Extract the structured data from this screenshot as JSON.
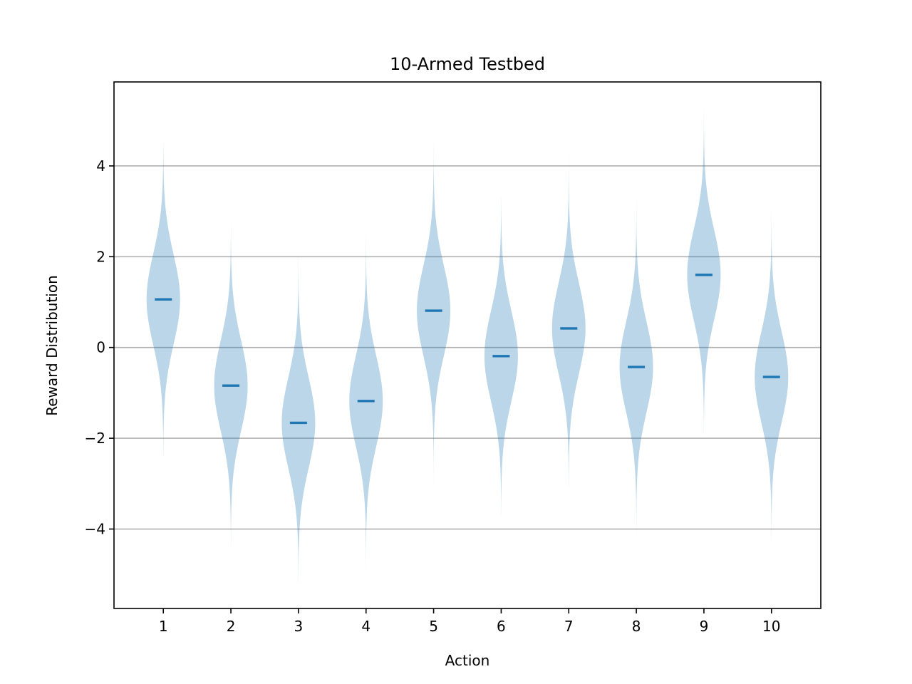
{
  "chart_data": {
    "type": "violin",
    "title": "10-Armed Testbed",
    "xlabel": "Action",
    "ylabel": "Reward Distribution",
    "categories": [
      "1",
      "2",
      "3",
      "4",
      "5",
      "6",
      "7",
      "8",
      "9",
      "10"
    ],
    "means": [
      1.06,
      -0.84,
      -1.66,
      -1.18,
      0.81,
      -0.19,
      0.42,
      -0.43,
      1.6,
      -0.65
    ],
    "ranges": [
      [
        -2.4,
        4.5
      ],
      [
        -4.4,
        2.8
      ],
      [
        -5.2,
        2.0
      ],
      [
        -4.9,
        2.6
      ],
      [
        -3.0,
        4.5
      ],
      [
        -3.7,
        3.3
      ],
      [
        -3.1,
        4.4
      ],
      [
        -4.3,
        3.3
      ],
      [
        -1.9,
        5.3
      ],
      [
        -4.3,
        3.1
      ]
    ],
    "ylim": [
      -5.75,
      5.85
    ],
    "yticks": [
      -4,
      -2,
      0,
      2,
      4
    ],
    "ytick_labels": [
      "−4",
      "−2",
      "0",
      "2",
      "4"
    ],
    "grid": "horizontal",
    "colors": {
      "violin_fill": "#1f77b4",
      "mean_line": "#1f77b4",
      "grid": "#b0b0b0"
    }
  }
}
